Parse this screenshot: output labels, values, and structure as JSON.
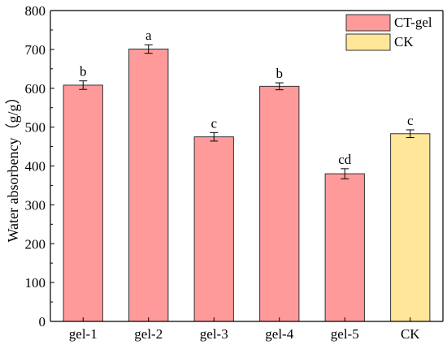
{
  "chart_data": {
    "type": "bar",
    "categories": [
      "gel-1",
      "gel-2",
      "gel-3",
      "gel-4",
      "gel-5",
      "CK"
    ],
    "series": [
      {
        "name": "CT-gel",
        "color": "#FF9A9A",
        "values": [
          608,
          701,
          475,
          605,
          380,
          null
        ],
        "errors": [
          11,
          11,
          11,
          9,
          13,
          null
        ],
        "labels": [
          "b",
          "a",
          "c",
          "b",
          "cd",
          ""
        ]
      },
      {
        "name": "CK",
        "color": "#FFE699",
        "values": [
          null,
          null,
          null,
          null,
          null,
          483
        ],
        "errors": [
          null,
          null,
          null,
          null,
          null,
          10
        ],
        "labels": [
          "",
          "",
          "",
          "",
          "",
          "c"
        ]
      }
    ],
    "ylabel": "Water absorbency（g/g）",
    "xlabel": "",
    "ylim": [
      0,
      800
    ],
    "yticks": [
      0,
      100,
      200,
      300,
      400,
      500,
      600,
      700,
      800
    ],
    "legend_position": "top-right",
    "grid": false
  }
}
